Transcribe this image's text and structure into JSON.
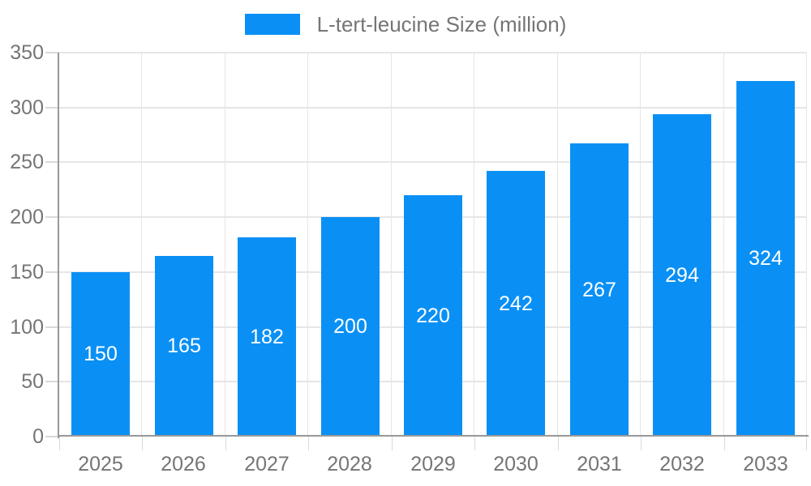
{
  "chart_data": {
    "type": "bar",
    "title": "L-tert-leucine Size (million)",
    "legend": {
      "label": "L-tert-leucine Size (million)",
      "position": "top"
    },
    "categories": [
      "2025",
      "2026",
      "2027",
      "2028",
      "2029",
      "2030",
      "2031",
      "2032",
      "2033"
    ],
    "series": [
      {
        "name": "L-tert-leucine Size (million)",
        "values": [
          150,
          165,
          182,
          200,
          220,
          242,
          267,
          294,
          324
        ]
      }
    ],
    "data_labels": [
      150,
      165,
      182,
      200,
      220,
      242,
      267,
      294,
      324
    ],
    "xlabel": "",
    "ylabel": "",
    "ylim": [
      0,
      350
    ],
    "yticks": [
      0,
      50,
      100,
      150,
      200,
      250,
      300,
      350
    ],
    "grid": true,
    "legend_position": "top-center",
    "colors": {
      "bar": "#0a90f5",
      "bar_label_text": "#ffffff",
      "axis_line": "#999999",
      "gridline": "#e6e6e6",
      "tick_mark": "#d9d9d9",
      "tick_text": "#757575",
      "legend_text": "#757575",
      "background": "#ffffff"
    }
  }
}
